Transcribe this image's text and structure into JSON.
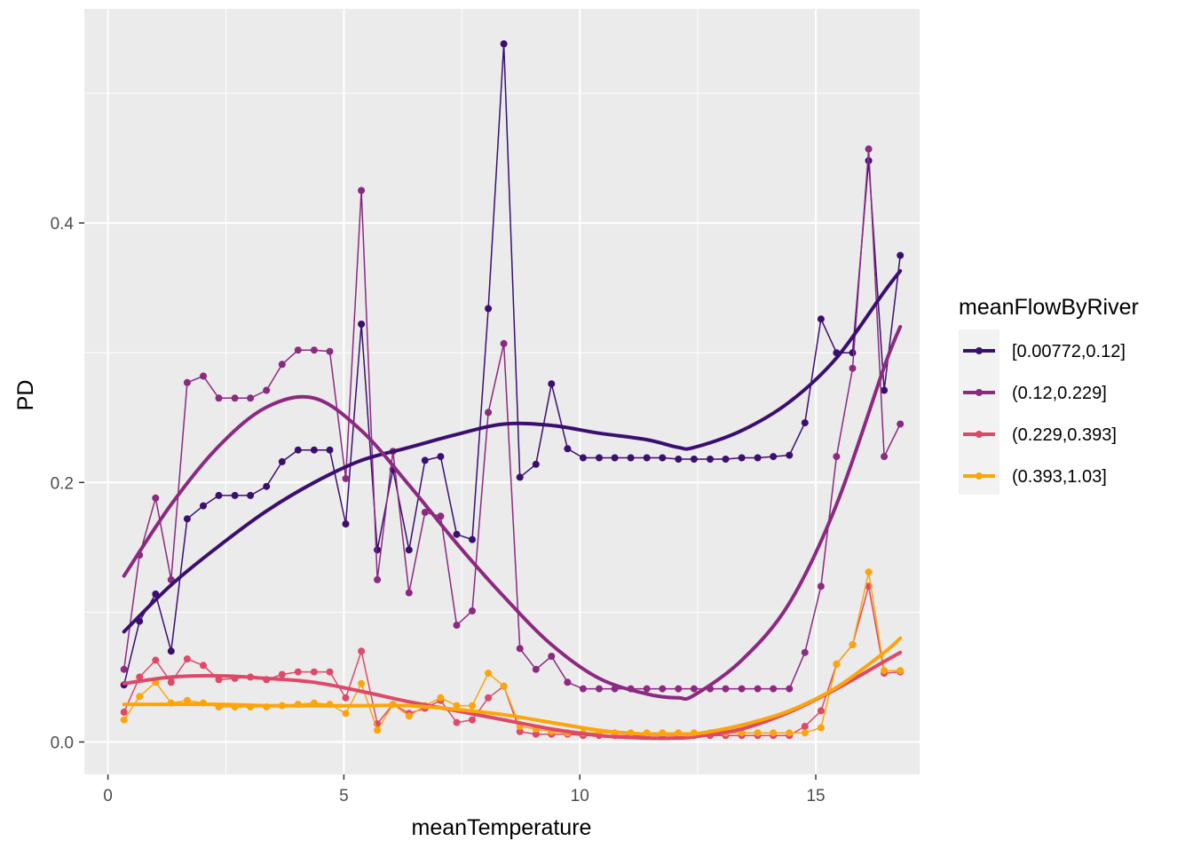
{
  "chart_data": {
    "type": "line",
    "xlabel": "meanTemperature",
    "ylabel": "PD",
    "xlim": [
      -0.5,
      17.2
    ],
    "ylim": [
      -0.025,
      0.565
    ],
    "xticks": [
      0,
      5,
      10,
      15
    ],
    "xtick_labels": [
      "0",
      "5",
      "10",
      "15"
    ],
    "yticks": [
      0.0,
      0.2,
      0.4
    ],
    "ytick_labels": [
      "0.0",
      "0.2",
      "0.4"
    ],
    "grid": true,
    "panel_background": "#EBEBEB",
    "legend_position": "right",
    "legend_title": "meanFlowByRiver",
    "x": [
      0.34,
      0.67,
      1.01,
      1.34,
      1.68,
      2.02,
      2.35,
      2.69,
      3.02,
      3.36,
      3.69,
      4.03,
      4.37,
      4.7,
      5.04,
      5.37,
      5.71,
      6.04,
      6.38,
      6.72,
      7.05,
      7.39,
      7.72,
      8.06,
      8.39,
      8.73,
      9.07,
      9.4,
      9.74,
      10.07,
      10.41,
      10.74,
      11.08,
      11.42,
      11.75,
      12.09,
      12.42,
      12.76,
      13.09,
      13.43,
      13.77,
      14.1,
      14.44,
      14.77,
      15.11,
      15.44,
      15.78,
      16.12,
      16.45,
      16.79
    ],
    "series": [
      {
        "name": "[0.00772,0.12]",
        "color": "#3B0F70",
        "values": [
          0.044,
          0.093,
          0.114,
          0.07,
          0.172,
          0.182,
          0.19,
          0.19,
          0.19,
          0.197,
          0.216,
          0.225,
          0.225,
          0.225,
          0.168,
          0.322,
          0.148,
          0.21,
          0.148,
          0.217,
          0.22,
          0.16,
          0.156,
          0.334,
          0.538,
          0.204,
          0.214,
          0.276,
          0.226,
          0.219,
          0.219,
          0.219,
          0.219,
          0.219,
          0.219,
          0.218,
          0.218,
          0.218,
          0.218,
          0.219,
          0.219,
          0.22,
          0.221,
          0.246,
          0.326,
          0.3,
          0.3,
          0.448,
          0.271,
          0.375
        ],
        "smooth": [
          [
            0.34,
            0.085
          ],
          [
            1.34,
            0.121
          ],
          [
            2.35,
            0.151
          ],
          [
            3.36,
            0.178
          ],
          [
            4.37,
            0.2
          ],
          [
            5.37,
            0.217
          ],
          [
            6.38,
            0.227
          ],
          [
            7.39,
            0.237
          ],
          [
            8.39,
            0.245
          ],
          [
            9.4,
            0.244
          ],
          [
            10.41,
            0.238
          ],
          [
            11.42,
            0.233
          ],
          [
            12.09,
            0.227
          ],
          [
            12.42,
            0.227
          ],
          [
            13.43,
            0.24
          ],
          [
            14.44,
            0.262
          ],
          [
            15.44,
            0.296
          ],
          [
            16.45,
            0.347
          ],
          [
            16.79,
            0.363
          ]
        ]
      },
      {
        "name": "(0.12,0.229]",
        "color": "#8C2981",
        "values": [
          0.056,
          0.144,
          0.188,
          0.125,
          0.277,
          0.282,
          0.265,
          0.265,
          0.265,
          0.271,
          0.291,
          0.302,
          0.302,
          0.301,
          0.203,
          0.425,
          0.125,
          0.224,
          0.115,
          0.177,
          0.174,
          0.09,
          0.101,
          0.254,
          0.307,
          0.072,
          0.056,
          0.066,
          0.046,
          0.041,
          0.041,
          0.041,
          0.041,
          0.041,
          0.041,
          0.041,
          0.041,
          0.041,
          0.041,
          0.041,
          0.041,
          0.041,
          0.041,
          0.069,
          0.12,
          0.22,
          0.288,
          0.457,
          0.22,
          0.245
        ],
        "smooth": [
          [
            0.34,
            0.128
          ],
          [
            1.34,
            0.183
          ],
          [
            2.35,
            0.228
          ],
          [
            3.36,
            0.258
          ],
          [
            4.37,
            0.265
          ],
          [
            5.37,
            0.24
          ],
          [
            6.38,
            0.198
          ],
          [
            7.39,
            0.153
          ],
          [
            8.39,
            0.112
          ],
          [
            9.4,
            0.075
          ],
          [
            10.41,
            0.049
          ],
          [
            11.42,
            0.037
          ],
          [
            12.09,
            0.034
          ],
          [
            12.42,
            0.036
          ],
          [
            13.43,
            0.063
          ],
          [
            14.44,
            0.107
          ],
          [
            15.44,
            0.183
          ],
          [
            16.45,
            0.289
          ],
          [
            16.79,
            0.32
          ]
        ]
      },
      {
        "name": "(0.229,0.393]",
        "color": "#DE4968",
        "values": [
          0.023,
          0.05,
          0.063,
          0.046,
          0.064,
          0.059,
          0.048,
          0.049,
          0.05,
          0.048,
          0.052,
          0.054,
          0.054,
          0.054,
          0.034,
          0.07,
          0.014,
          0.029,
          0.022,
          0.026,
          0.032,
          0.015,
          0.017,
          0.034,
          0.043,
          0.008,
          0.006,
          0.006,
          0.006,
          0.005,
          0.005,
          0.005,
          0.005,
          0.005,
          0.005,
          0.005,
          0.005,
          0.005,
          0.005,
          0.005,
          0.005,
          0.005,
          0.005,
          0.012,
          0.024,
          0.06,
          0.075,
          0.12,
          0.053,
          0.054
        ],
        "smooth": [
          [
            0.34,
            0.045
          ],
          [
            1.34,
            0.05
          ],
          [
            2.35,
            0.051
          ],
          [
            3.36,
            0.049
          ],
          [
            4.37,
            0.046
          ],
          [
            5.37,
            0.039
          ],
          [
            6.38,
            0.031
          ],
          [
            7.39,
            0.024
          ],
          [
            8.39,
            0.017
          ],
          [
            9.4,
            0.01
          ],
          [
            10.41,
            0.005
          ],
          [
            11.42,
            0.003
          ],
          [
            12.09,
            0.003
          ],
          [
            12.42,
            0.004
          ],
          [
            13.43,
            0.01
          ],
          [
            14.44,
            0.023
          ],
          [
            15.44,
            0.041
          ],
          [
            16.45,
            0.062
          ],
          [
            16.79,
            0.069
          ]
        ]
      },
      {
        "name": "(0.393,1.03]",
        "color": "#FCA50A",
        "values": [
          0.017,
          0.035,
          0.046,
          0.03,
          0.032,
          0.03,
          0.027,
          0.027,
          0.027,
          0.027,
          0.028,
          0.029,
          0.03,
          0.029,
          0.022,
          0.045,
          0.009,
          0.029,
          0.02,
          0.028,
          0.034,
          0.028,
          0.028,
          0.053,
          0.043,
          0.012,
          0.01,
          0.008,
          0.007,
          0.007,
          0.007,
          0.007,
          0.007,
          0.007,
          0.007,
          0.007,
          0.007,
          0.007,
          0.007,
          0.007,
          0.007,
          0.007,
          0.007,
          0.007,
          0.011,
          0.06,
          0.075,
          0.131,
          0.055,
          0.055
        ],
        "smooth": [
          [
            0.34,
            0.029
          ],
          [
            1.34,
            0.029
          ],
          [
            2.35,
            0.029
          ],
          [
            3.36,
            0.028
          ],
          [
            4.37,
            0.028
          ],
          [
            5.37,
            0.028
          ],
          [
            6.38,
            0.028
          ],
          [
            7.39,
            0.025
          ],
          [
            8.39,
            0.021
          ],
          [
            9.4,
            0.015
          ],
          [
            10.41,
            0.009
          ],
          [
            11.42,
            0.006
          ],
          [
            12.09,
            0.006
          ],
          [
            12.42,
            0.006
          ],
          [
            13.43,
            0.013
          ],
          [
            14.44,
            0.024
          ],
          [
            15.44,
            0.042
          ],
          [
            16.45,
            0.069
          ],
          [
            16.79,
            0.08
          ]
        ]
      }
    ]
  }
}
